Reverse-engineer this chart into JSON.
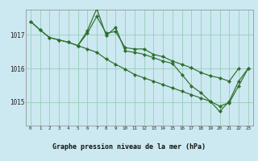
{
  "title": "Graphe pression niveau de la mer (hPa)",
  "bg_color": "#cce8f0",
  "plot_bg_color": "#cce8f0",
  "grid_color": "#99ccbb",
  "line_color": "#2d6e2d",
  "marker_color": "#2d6e2d",
  "title_bg_color": "#b8d8c8",
  "x_ticks": [
    0,
    1,
    2,
    3,
    4,
    5,
    6,
    7,
    8,
    9,
    10,
    11,
    12,
    13,
    14,
    15,
    16,
    17,
    18,
    19,
    20,
    21,
    22,
    23
  ],
  "y_ticks": [
    1015,
    1016,
    1017
  ],
  "ylim": [
    1014.3,
    1017.75
  ],
  "xlim": [
    -0.5,
    23.5
  ],
  "series1": [
    1017.4,
    1017.15,
    1016.92,
    1016.85,
    1016.78,
    1016.68,
    1017.05,
    1017.55,
    1017.05,
    1017.1,
    1016.62,
    1016.58,
    1016.58,
    1016.42,
    1016.35,
    1016.22,
    1016.12,
    1016.02,
    1015.88,
    1015.78,
    1015.72,
    1015.62,
    1016.0,
    null
  ],
  "series2": [
    1017.4,
    1017.15,
    1016.92,
    1016.85,
    1016.78,
    1016.68,
    1017.12,
    1017.78,
    1016.98,
    1017.22,
    1016.52,
    1016.48,
    1016.42,
    1016.32,
    1016.22,
    1016.15,
    1015.82,
    1015.48,
    1015.28,
    1015.02,
    1014.72,
    1015.02,
    1015.62,
    1016.0
  ],
  "series3": [
    null,
    null,
    null,
    null,
    null,
    1016.68,
    1016.58,
    1016.48,
    1016.28,
    1016.12,
    1015.98,
    1015.82,
    1015.72,
    1015.62,
    1015.52,
    1015.42,
    1015.32,
    1015.22,
    1015.12,
    1015.02,
    1014.88,
    1014.98,
    1015.48,
    1016.0
  ]
}
